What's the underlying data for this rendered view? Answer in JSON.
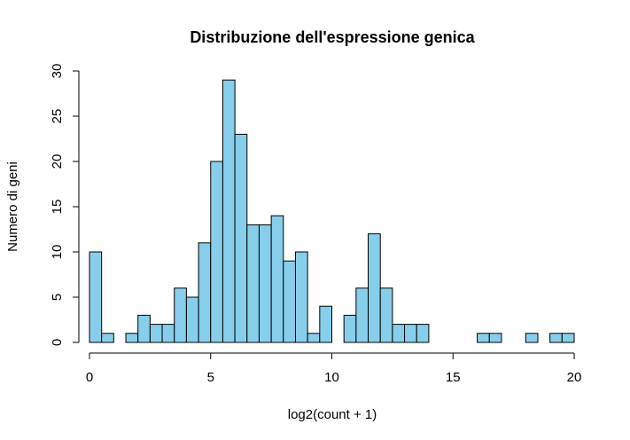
{
  "chart_data": {
    "type": "bar",
    "title": "Distribuzione dell'espressione genica",
    "xlabel": "log2(count + 1)",
    "ylabel": "Numero di geni",
    "xlim": [
      0,
      20
    ],
    "ylim": [
      0,
      30
    ],
    "xticks": [
      "0",
      "5",
      "10",
      "15",
      "20"
    ],
    "yticks": [
      "0",
      "5",
      "10",
      "15",
      "20",
      "25",
      "30"
    ],
    "bin_width": 0.5,
    "bin_start": 0,
    "fill_color": "#87CEEB",
    "values": [
      10,
      1,
      0,
      1,
      3,
      2,
      2,
      6,
      5,
      11,
      20,
      29,
      23,
      13,
      13,
      14,
      9,
      10,
      1,
      4,
      0,
      3,
      6,
      12,
      6,
      2,
      2,
      2,
      0,
      0,
      0,
      0,
      1,
      1,
      0,
      0,
      1,
      0,
      1,
      1
    ]
  }
}
